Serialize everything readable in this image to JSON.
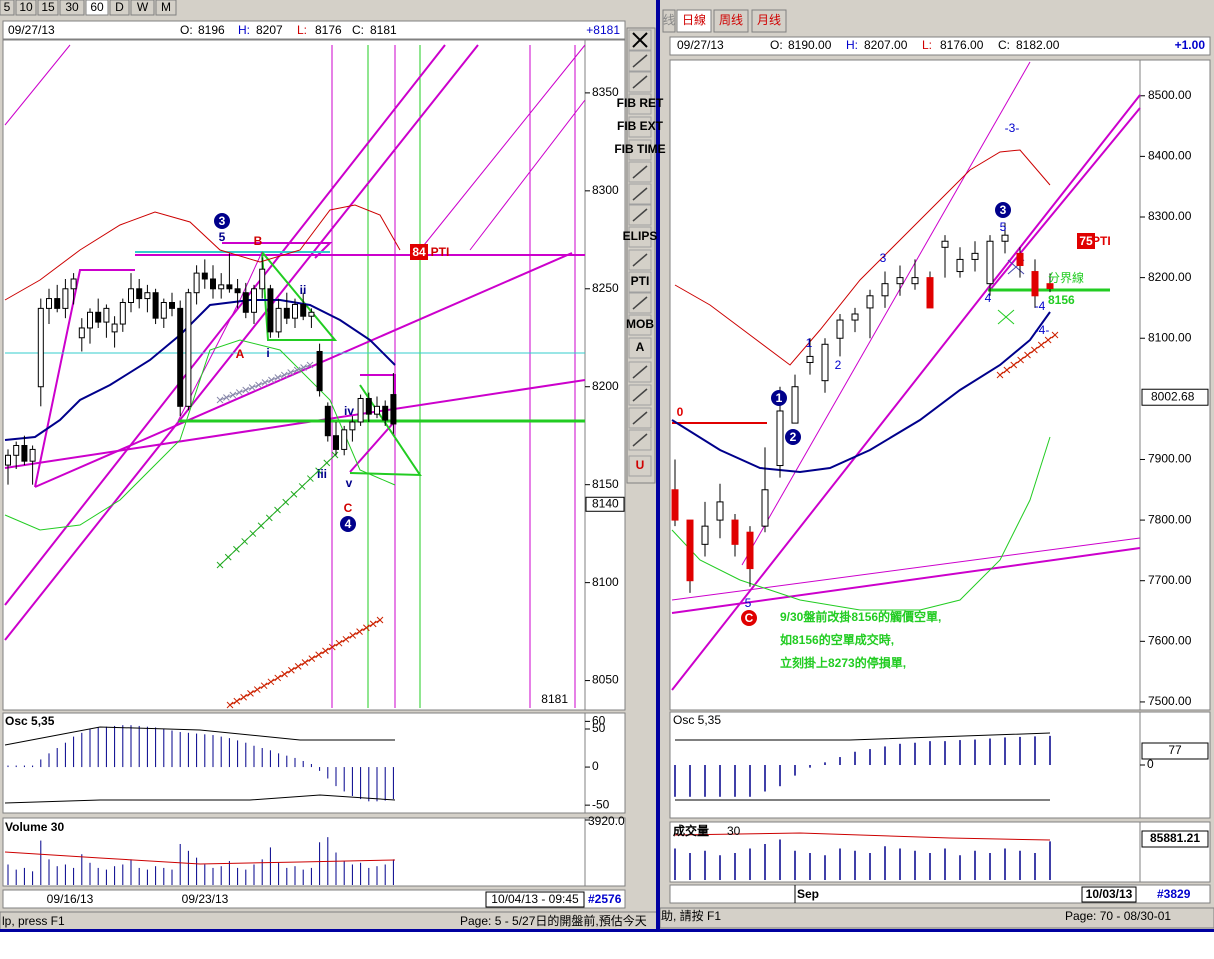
{
  "left": {
    "timeframes": [
      "5",
      "10",
      "15",
      "30",
      "60",
      "D",
      "W",
      "M"
    ],
    "selected_timeframe": "60",
    "header": {
      "date": "09/27/13",
      "open": {
        "label": "O:",
        "value": 8196
      },
      "high": {
        "label": "H:",
        "value": 8207
      },
      "low": {
        "label": "L:",
        "value": 8176
      },
      "close": {
        "label": "C:",
        "value": 8181
      },
      "change": "+8181"
    },
    "ylim": [
      8036,
      8377
    ],
    "yticks": [
      8350,
      8300,
      8250,
      8200,
      8150,
      8100,
      8050
    ],
    "price_marker": 8140,
    "last_label": "8181",
    "up_color": "#ffffff",
    "down_color": "#000000",
    "candles": [
      [
        8160,
        8168,
        8150,
        8165
      ],
      [
        8165,
        8172,
        8158,
        8170
      ],
      [
        8170,
        8175,
        8160,
        8162
      ],
      [
        8162,
        8170,
        8150,
        8168
      ],
      [
        8200,
        8245,
        8190,
        8240
      ],
      [
        8240,
        8250,
        8232,
        8245
      ],
      [
        8245,
        8252,
        8238,
        8240
      ],
      [
        8240,
        8255,
        8235,
        8250
      ],
      [
        8250,
        8258,
        8242,
        8255
      ],
      [
        8225,
        8235,
        8218,
        8230
      ],
      [
        8230,
        8240,
        8222,
        8238
      ],
      [
        8238,
        8245,
        8230,
        8233
      ],
      [
        8233,
        8242,
        8225,
        8240
      ],
      [
        8228,
        8236,
        8220,
        8232
      ],
      [
        8232,
        8245,
        8228,
        8243
      ],
      [
        8243,
        8258,
        8238,
        8250
      ],
      [
        8250,
        8255,
        8240,
        8245
      ],
      [
        8245,
        8252,
        8238,
        8248
      ],
      [
        8248,
        8250,
        8232,
        8235
      ],
      [
        8235,
        8245,
        8230,
        8243
      ],
      [
        8243,
        8248,
        8236,
        8240
      ],
      [
        8240,
        8244,
        8185,
        8190
      ],
      [
        8190,
        8250,
        8188,
        8248
      ],
      [
        8248,
        8262,
        8242,
        8258
      ],
      [
        8258,
        8265,
        8250,
        8255
      ],
      [
        8255,
        8262,
        8245,
        8250
      ],
      [
        8250,
        8258,
        8245,
        8252
      ],
      [
        8252,
        8268,
        8248,
        8250
      ],
      [
        8250,
        8255,
        8240,
        8248
      ],
      [
        8248,
        8253,
        8235,
        8238
      ],
      [
        8238,
        8252,
        8232,
        8250
      ],
      [
        8250,
        8266,
        8245,
        8260
      ],
      [
        8250,
        8252,
        8225,
        8228
      ],
      [
        8228,
        8245,
        8225,
        8240
      ],
      [
        8240,
        8248,
        8232,
        8235
      ],
      [
        8235,
        8245,
        8230,
        8242
      ],
      [
        8242,
        8248,
        8234,
        8236
      ],
      [
        8236,
        8240,
        8230,
        8238
      ],
      [
        8218,
        8222,
        8195,
        8198
      ],
      [
        8190,
        8192,
        8172,
        8175
      ],
      [
        8175,
        8182,
        8165,
        8168
      ],
      [
        8168,
        8180,
        8165,
        8178
      ],
      [
        8178,
        8185,
        8172,
        8182
      ],
      [
        8182,
        8196,
        8180,
        8194
      ],
      [
        8194,
        8197,
        8182,
        8186
      ],
      [
        8186,
        8195,
        8184,
        8190
      ],
      [
        8190,
        8193,
        8180,
        8183
      ],
      [
        8196,
        8207,
        8176,
        8181
      ]
    ],
    "annotations": [
      "3",
      "5",
      "B",
      "A",
      "i",
      "ii",
      "iii",
      "iv",
      "v",
      "C",
      "4",
      "84",
      "PTI"
    ],
    "osc": {
      "title": "Osc 5,35",
      "ylim": [
        -59,
        71
      ],
      "yticks": [
        60,
        50,
        0,
        -50
      ],
      "color": "#00008b",
      "values": [
        2,
        2,
        2,
        2,
        10,
        18,
        25,
        32,
        40,
        45,
        50,
        52,
        53,
        54,
        55,
        55,
        54,
        53,
        52,
        50,
        48,
        46,
        45,
        44,
        43,
        42,
        40,
        38,
        35,
        32,
        28,
        25,
        22,
        18,
        15,
        12,
        8,
        4,
        -5,
        -15,
        -25,
        -32,
        -38,
        -42,
        -45,
        -45,
        -44,
        -42
      ]
    },
    "volume": {
      "title": "Volume 30",
      "ylim": [
        0,
        3920
      ],
      "yticks": [
        {
          "value": 3920,
          "label": "3920.0"
        }
      ],
      "color": "#00008b",
      "values": [
        1200,
        900,
        1000,
        800,
        2600,
        1500,
        1100,
        1200,
        1000,
        1800,
        1300,
        1000,
        900,
        1100,
        1200,
        1500,
        1000,
        900,
        1100,
        1000,
        900,
        2400,
        2000,
        1600,
        1200,
        1000,
        1100,
        1400,
        1000,
        900,
        1200,
        1500,
        2200,
        1300,
        1000,
        1100,
        900,
        1000,
        2500,
        2800,
        1900,
        1400,
        1200,
        1300,
        1000,
        1100,
        1200,
        1500
      ]
    },
    "dates": [
      "09/16/13",
      "09/23/13"
    ],
    "current_time": "10/04/13 - 09:45",
    "count": "#2576",
    "status": "lp, press F1",
    "page": "Page: 5 - 5/27日的開盤前,預估今天"
  },
  "toolbar": [
    "FIB RET",
    "FIB EXT",
    "FIB TIME",
    "ELIPS",
    "PTI",
    "MOB",
    "A",
    "U"
  ],
  "right": {
    "tabs": [
      "线",
      "日線",
      "周线",
      "月线"
    ],
    "header": {
      "date": "09/27/13",
      "open": {
        "label": "O:",
        "value": "8190.00"
      },
      "high": {
        "label": "H:",
        "value": "8207.00"
      },
      "low": {
        "label": "L:",
        "value": "8176.00"
      },
      "close": {
        "label": "C:",
        "value": "8182.00"
      },
      "change": "+1.00"
    },
    "ylim": [
      7490,
      8559
    ],
    "yticks": [
      {
        "value": 8500,
        "label": "8500.00"
      },
      {
        "value": 8400,
        "label": "8400.00"
      },
      {
        "value": 8300,
        "label": "8300.00"
      },
      {
        "value": 8200,
        "label": "8200.00"
      },
      {
        "value": 8100,
        "label": "8100.00"
      },
      {
        "value": 7900,
        "label": "7900.00"
      },
      {
        "value": 7800,
        "label": "7800.00"
      },
      {
        "value": 7700,
        "label": "7700.00"
      },
      {
        "value": 7600,
        "label": "7600.00"
      },
      {
        "value": 7500,
        "label": "7500.00"
      }
    ],
    "price_marker": {
      "value": 8002.68,
      "label": "8002.68"
    },
    "up_color": "#ffffff",
    "down_color": "#e00000",
    "candles": [
      [
        7850,
        7900,
        7790,
        7800
      ],
      [
        7800,
        7800,
        7680,
        7700
      ],
      [
        7760,
        7830,
        7740,
        7790
      ],
      [
        7800,
        7860,
        7770,
        7830
      ],
      [
        7800,
        7810,
        7740,
        7760
      ],
      [
        7780,
        7790,
        7690,
        7720
      ],
      [
        7790,
        7920,
        7780,
        7850
      ],
      [
        7890,
        8020,
        7870,
        7980
      ],
      [
        7960,
        8040,
        7960,
        8020
      ],
      [
        8060,
        8100,
        8040,
        8070
      ],
      [
        8030,
        8100,
        8010,
        8090
      ],
      [
        8100,
        8140,
        8070,
        8130
      ],
      [
        8130,
        8150,
        8110,
        8140
      ],
      [
        8150,
        8180,
        8100,
        8170
      ],
      [
        8170,
        8210,
        8150,
        8190
      ],
      [
        8190,
        8220,
        8170,
        8200
      ],
      [
        8190,
        8230,
        8180,
        8200
      ],
      [
        8200,
        8210,
        8150,
        8150
      ],
      [
        8250,
        8270,
        8200,
        8260
      ],
      [
        8210,
        8250,
        8200,
        8230
      ],
      [
        8230,
        8260,
        8210,
        8240
      ],
      [
        8190,
        8270,
        8170,
        8260
      ],
      [
        8260,
        8290,
        8240,
        8270
      ],
      [
        8240,
        8250,
        8200,
        8220
      ],
      [
        8210,
        8230,
        8150,
        8170
      ],
      [
        8190,
        8207,
        8176,
        8182
      ]
    ],
    "annotations": [
      "0",
      "1",
      "2",
      "1",
      "2",
      "3",
      "4",
      "5",
      "3",
      "5",
      "C",
      "-3-",
      "-4-",
      "-4",
      "75",
      "PTI",
      "分界線",
      "8156"
    ],
    "notes": [
      "9/30盤前改掛8156的觸價空單,",
      "如8156的空單成交時,",
      "立刻掛上8273的停損單,"
    ],
    "osc": {
      "title": "Osc 5,35",
      "ylim": [
        -100,
        100
      ],
      "yticks": [
        0
      ],
      "marker": "77",
      "color": "#00008b",
      "values": [
        -60,
        -60,
        -60,
        -60,
        -60,
        -60,
        -50,
        -40,
        -20,
        -5,
        5,
        15,
        25,
        30,
        35,
        40,
        42,
        45,
        45,
        47,
        48,
        50,
        52,
        53,
        54,
        55
      ]
    },
    "volume": {
      "title": "成交量",
      "period": "30",
      "ylim": [
        0,
        120000
      ],
      "marker": "85881.21",
      "color": "#00008b",
      "values": [
        70000,
        60000,
        65000,
        55000,
        60000,
        70000,
        80000,
        90000,
        65000,
        60000,
        55000,
        70000,
        65000,
        60000,
        75000,
        70000,
        65000,
        60000,
        70000,
        55000,
        65000,
        60000,
        70000,
        65000,
        60000,
        85881
      ]
    },
    "dates": [
      "Sep"
    ],
    "current_date": "10/03/13",
    "count": "#3829",
    "status": "助, 請按 F1",
    "page": "Page: 70 - 08/30-01"
  }
}
